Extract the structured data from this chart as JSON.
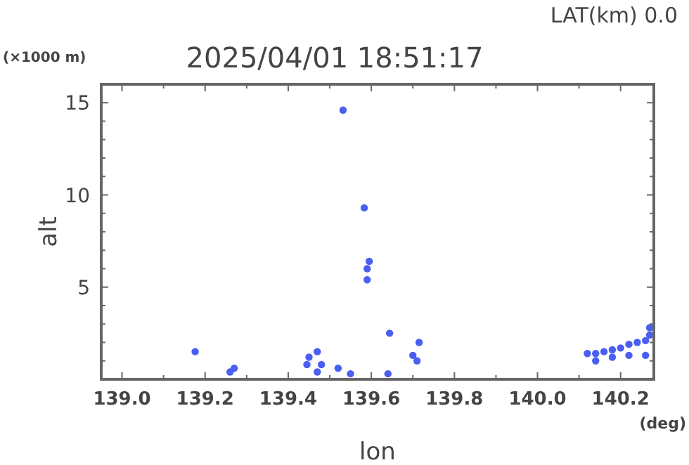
{
  "chart_data": {
    "type": "scatter",
    "title": "2025/04/01 18:51:17",
    "subtitle": "LAT(km) 0.0",
    "xlabel": "lon",
    "ylabel": "alt",
    "annotations": [
      "(×1000 m)",
      "(deg)"
    ],
    "marker": "circle",
    "grid": false,
    "xlim": [
      138.95,
      140.28
    ],
    "ylim": [
      0,
      16
    ],
    "xticks": [
      {
        "value": 139.0,
        "label": "139.0"
      },
      {
        "value": 139.1,
        "label": null
      },
      {
        "value": 139.2,
        "label": "139.2"
      },
      {
        "value": 139.3,
        "label": null
      },
      {
        "value": 139.4,
        "label": "139.4"
      },
      {
        "value": 139.5,
        "label": null
      },
      {
        "value": 139.6,
        "label": "139.6"
      },
      {
        "value": 139.7,
        "label": null
      },
      {
        "value": 139.8,
        "label": "139.8"
      },
      {
        "value": 139.9,
        "label": null
      },
      {
        "value": 140.0,
        "label": "140.0"
      },
      {
        "value": 140.1,
        "label": null
      },
      {
        "value": 140.2,
        "label": "140.2"
      }
    ],
    "yticks": [
      {
        "value": 1,
        "label": null
      },
      {
        "value": 2,
        "label": null
      },
      {
        "value": 3,
        "label": null
      },
      {
        "value": 4,
        "label": null
      },
      5,
      {
        "value": 6,
        "label": null
      },
      {
        "value": 7,
        "label": null
      },
      {
        "value": 8,
        "label": null
      },
      {
        "value": 9,
        "label": null
      },
      10,
      {
        "value": 11,
        "label": null
      },
      {
        "value": 12,
        "label": null
      },
      {
        "value": 13,
        "label": null
      },
      {
        "value": 14,
        "label": null
      },
      15,
      {
        "value": 16,
        "label": null
      }
    ],
    "series": [
      {
        "color": "#4a5ef2",
        "x": [
          139.532,
          139.583,
          139.59,
          139.59,
          139.595,
          139.644,
          139.176,
          139.27,
          139.26,
          139.45,
          139.47,
          139.48,
          139.47,
          139.445,
          139.52,
          139.55,
          139.64,
          139.7,
          139.715,
          139.71,
          140.12,
          140.14,
          140.16,
          140.18,
          140.2,
          140.22,
          140.24,
          140.26,
          140.27,
          140.14,
          140.18,
          140.22,
          140.26,
          140.27
        ],
        "values": [
          14.6,
          9.3,
          5.4,
          6.0,
          6.4,
          2.5,
          1.5,
          0.6,
          0.4,
          1.2,
          1.5,
          0.8,
          0.4,
          0.8,
          0.6,
          0.3,
          0.3,
          1.3,
          2.0,
          1.0,
          1.4,
          1.4,
          1.5,
          1.6,
          1.7,
          1.9,
          2.0,
          2.1,
          2.4,
          1.0,
          1.2,
          1.3,
          1.3,
          2.8
        ]
      }
    ]
  }
}
